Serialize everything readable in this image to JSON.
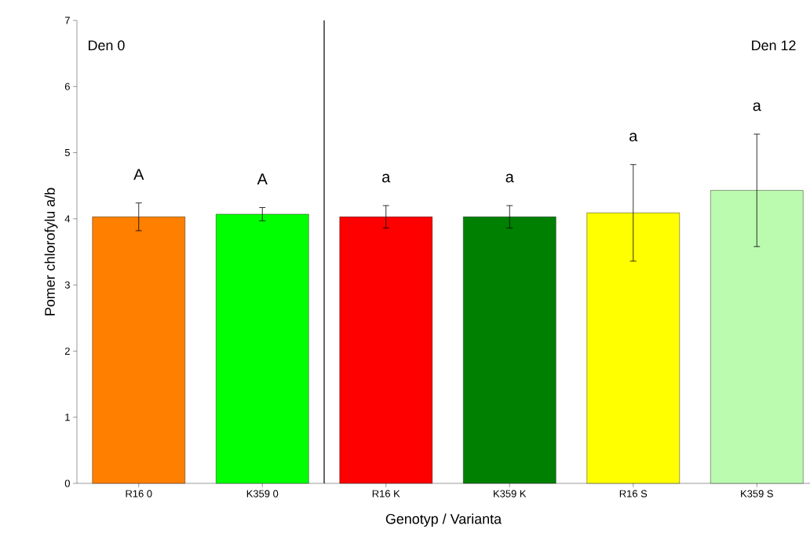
{
  "chart_data": {
    "type": "bar",
    "xlabel": "Genotyp / Varianta",
    "ylabel": "Pomer chlorofylu a/b",
    "categories": [
      "R16 0",
      "K359 0",
      "R16 K",
      "K359 K",
      "R16 S",
      "K359 S"
    ],
    "values": [
      4.03,
      4.07,
      4.03,
      4.03,
      4.09,
      4.43
    ],
    "errors": [
      0.21,
      0.1,
      0.17,
      0.17,
      0.73,
      0.85
    ],
    "colors": [
      "#ff8000",
      "#00ff00",
      "#ff0000",
      "#008000",
      "#ffff00",
      "#bbfbb0"
    ],
    "ylim": [
      0,
      7
    ],
    "yticks": [
      0,
      1,
      2,
      3,
      4,
      5,
      6,
      7
    ],
    "annotations": [
      "Den 0",
      "Den 12",
      "A",
      "A",
      "a",
      "a",
      "a",
      "a"
    ]
  }
}
